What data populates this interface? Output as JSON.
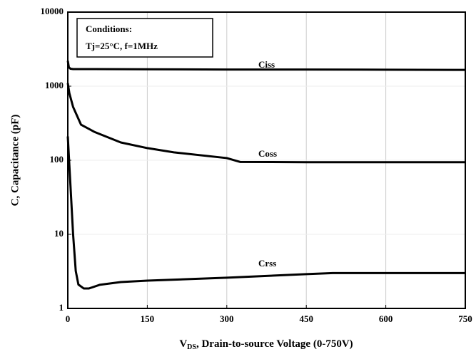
{
  "chart_data": {
    "type": "line",
    "y_label": "C, Capacitance (pF)",
    "x_label": [
      "V",
      "DS",
      ", Drain-to-source Voltage (0-750V)"
    ],
    "conditions": [
      "Conditions:",
      "Tj=25°C, f=1MHz"
    ],
    "xlim": [
      0,
      750
    ],
    "xticks": [
      0,
      150,
      300,
      450,
      600,
      750
    ],
    "ylim": [
      1,
      10000
    ],
    "yticks": [
      1,
      10,
      100,
      1000,
      10000
    ],
    "log_y": true,
    "grid": true,
    "series": [
      {
        "name": "Ciss",
        "color": "#000000",
        "x": [
          0,
          2,
          5,
          10,
          50,
          150,
          300,
          450,
          600,
          750
        ],
        "values": [
          2200,
          1800,
          1720,
          1700,
          1700,
          1690,
          1680,
          1680,
          1670,
          1660
        ]
      },
      {
        "name": "Coss",
        "color": "#000000",
        "x": [
          0,
          3,
          10,
          25,
          50,
          100,
          150,
          200,
          300,
          325,
          450,
          600,
          750
        ],
        "values": [
          1100,
          800,
          525,
          302,
          242,
          174,
          146,
          128,
          107,
          95,
          94,
          94,
          94
        ]
      },
      {
        "name": "Crss",
        "color": "#000000",
        "x": [
          0,
          5,
          10,
          15,
          20,
          30,
          40,
          60,
          100,
          150,
          300,
          450,
          500,
          750
        ],
        "values": [
          210,
          46,
          10,
          3.2,
          2.1,
          1.86,
          1.86,
          2.08,
          2.27,
          2.37,
          2.6,
          2.9,
          3.0,
          3.0
        ]
      }
    ]
  }
}
